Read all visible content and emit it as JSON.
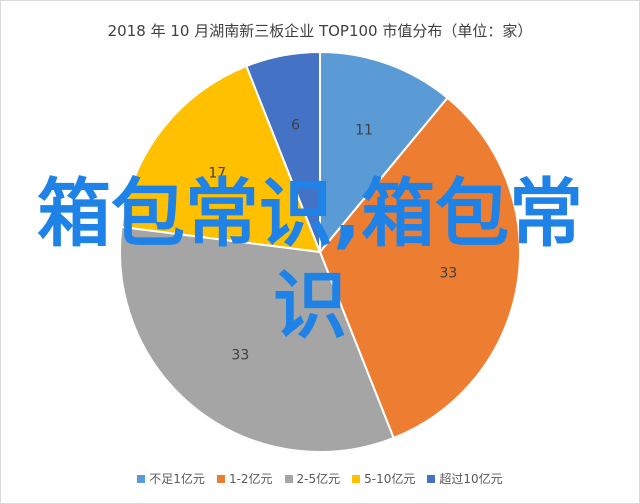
{
  "chart_data": {
    "type": "pie",
    "title": "2018 年 10 月湖南新三板企业 TOP100 市值分布（单位：家）",
    "categories": [
      "不足1亿元",
      "1-2亿元",
      "2-5亿元",
      "5-10亿元",
      "超过10亿元"
    ],
    "values": [
      11,
      33,
      33,
      17,
      6
    ],
    "colors": [
      "#5b9bd5",
      "#ed7d31",
      "#a5a5a5",
      "#ffc000",
      "#4472c4"
    ],
    "legend_position": "bottom"
  },
  "watermark": "箱包常识,箱包常识"
}
